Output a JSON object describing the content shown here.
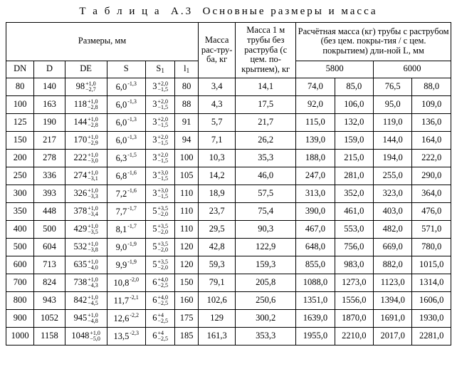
{
  "title_lead": "Т а б л и ц а",
  "title_num": "А.3",
  "title_rest": "Основные размеры и масса",
  "head": {
    "dims": "Размеры, мм",
    "massRastr": "Масса рас-тру-ба, кг",
    "mass1m": "Масса 1 м трубы без раструба (с цем. по-крытием), кг",
    "calc": "Расчётная масса (кг) трубы с раструбом (без цем. покры-тия / с цем. покрытием) дли-ной L, мм",
    "dn": "DN",
    "d": "D",
    "de": "DE",
    "s": "S",
    "s1": "S",
    "s1sub": "1",
    "i1": "l",
    "i1sub": "1",
    "l5800": "5800",
    "l6000": "6000"
  },
  "rows": [
    {
      "dn": "80",
      "d": "140",
      "de": "98",
      "det": [
        "+1,0",
        "−2,7"
      ],
      "s": "6,0",
      "st": "-1,3",
      "s1": "3",
      "s1t": [
        "+2,0",
        "−1,5"
      ],
      "i1": "80",
      "mr": "3,4",
      "m1": "14,1",
      "a": "74,0",
      "b": "85,0",
      "c": "76,5",
      "e": "88,0"
    },
    {
      "dn": "100",
      "d": "163",
      "de": "118",
      "det": [
        "+1,0",
        "−2,8"
      ],
      "s": "6,0",
      "st": "-1,3",
      "s1": "3",
      "s1t": [
        "+2,0",
        "−1,5"
      ],
      "i1": "88",
      "mr": "4,3",
      "m1": "17,5",
      "a": "92,0",
      "b": "106,0",
      "c": "95,0",
      "e": "109,0"
    },
    {
      "dn": "125",
      "d": "190",
      "de": "144",
      "det": [
        "+1,0",
        "−2,8"
      ],
      "s": "6,0",
      "st": "-1,3",
      "s1": "3",
      "s1t": [
        "+2,0",
        "−1,5"
      ],
      "i1": "91",
      "mr": "5,7",
      "m1": "21,7",
      "a": "115,0",
      "b": "132,0",
      "c": "119,0",
      "e": "136,0"
    },
    {
      "dn": "150",
      "d": "217",
      "de": "170",
      "det": [
        "+1,0",
        "−2,9"
      ],
      "s": "6,0",
      "st": "-1,3",
      "s1": "3",
      "s1t": [
        "+2,0",
        "−1,5"
      ],
      "i1": "94",
      "mr": "7,1",
      "m1": "26,2",
      "a": "139,0",
      "b": "159,0",
      "c": "144,0",
      "e": "164,0"
    },
    {
      "dn": "200",
      "d": "278",
      "de": "222",
      "det": [
        "+1,0",
        "−3,0"
      ],
      "s": "6,3",
      "st": "-1,5",
      "s1": "3",
      "s1t": [
        "+2,0",
        "−1,5"
      ],
      "i1": "100",
      "mr": "10,3",
      "m1": "35,3",
      "a": "188,0",
      "b": "215,0",
      "c": "194,0",
      "e": "222,0"
    },
    {
      "dn": "250",
      "d": "336",
      "de": "274",
      "det": [
        "+1,0",
        "−3,1"
      ],
      "s": "6,8",
      "st": "-1,6",
      "s1": "3",
      "s1t": [
        "+3,0",
        "−1,5"
      ],
      "i1": "105",
      "mr": "14,2",
      "m1": "46,0",
      "a": "247,0",
      "b": "281,0",
      "c": "255,0",
      "e": "290,0"
    },
    {
      "dn": "300",
      "d": "393",
      "de": "326",
      "det": [
        "+1,0",
        "−3,3"
      ],
      "s": "7,2",
      "st": "-1,6",
      "s1": "3",
      "s1t": [
        "+3,0",
        "−1,5"
      ],
      "i1": "110",
      "mr": "18,9",
      "m1": "57,5",
      "a": "313,0",
      "b": "352,0",
      "c": "323,0",
      "e": "364,0"
    },
    {
      "dn": "350",
      "d": "448",
      "de": "378",
      "det": [
        "+1,0",
        "−3,4"
      ],
      "s": "7,7",
      "st": "-1,7",
      "s1": "5",
      "s1t": [
        "+3,5",
        "−2,0"
      ],
      "i1": "110",
      "mr": "23,7",
      "m1": "75,4",
      "a": "390,0",
      "b": "461,0",
      "c": "403,0",
      "e": "476,0"
    },
    {
      "dn": "400",
      "d": "500",
      "de": "429",
      "det": [
        "+1,0",
        "−3,5"
      ],
      "s": "8,1",
      "st": "-1,7",
      "s1": "5",
      "s1t": [
        "+3,5",
        "−2,0"
      ],
      "i1": "110",
      "mr": "29,5",
      "m1": "90,3",
      "a": "467,0",
      "b": "553,0",
      "c": "482,0",
      "e": "571,0"
    },
    {
      "dn": "500",
      "d": "604",
      "de": "532",
      "det": [
        "+1,0",
        "−3,8"
      ],
      "s": "9,0",
      "st": "-1,9",
      "s1": "5",
      "s1t": [
        "+3,5",
        "−2,0"
      ],
      "i1": "120",
      "mr": "42,8",
      "m1": "122,9",
      "a": "648,0",
      "b": "756,0",
      "c": "669,0",
      "e": "780,0"
    },
    {
      "dn": "600",
      "d": "713",
      "de": "635",
      "det": [
        "+1,0",
        "−4,0"
      ],
      "s": "9,9",
      "st": "-1,9",
      "s1": "5",
      "s1t": [
        "+3,5",
        "−2,0"
      ],
      "i1": "120",
      "mr": "59,3",
      "m1": "159,3",
      "a": "855,0",
      "b": "983,0",
      "c": "882,0",
      "e": "1015,0"
    },
    {
      "dn": "700",
      "d": "824",
      "de": "738",
      "det": [
        "+1,0",
        "−4,3"
      ],
      "s": "10,8",
      "st": "-2,0",
      "s1": "6",
      "s1t": [
        "+4,0",
        "−2,5"
      ],
      "i1": "150",
      "mr": "79,1",
      "m1": "205,8",
      "a": "1088,0",
      "b": "1273,0",
      "c": "1123,0",
      "e": "1314,0"
    },
    {
      "dn": "800",
      "d": "943",
      "de": "842",
      "det": [
        "+1,0",
        "−4,5"
      ],
      "s": "11,7",
      "st": "-2,1",
      "s1": "6",
      "s1t": [
        "+4,0",
        "−2,5"
      ],
      "i1": "160",
      "mr": "102,6",
      "m1": "250,6",
      "a": "1351,0",
      "b": "1556,0",
      "c": "1394,0",
      "e": "1606,0"
    },
    {
      "dn": "900",
      "d": "1052",
      "de": "945",
      "det": [
        "+1,0",
        "−4,8"
      ],
      "s": "12,6",
      "st": "-2,2",
      "s1": "6",
      "s1t": [
        "+4",
        "−2,5"
      ],
      "i1": "175",
      "mr": "129",
      "m1": "300,2",
      "a": "1639,0",
      "b": "1870,0",
      "c": "1691,0",
      "e": "1930,0"
    },
    {
      "dn": "1000",
      "d": "1158",
      "de": "1048",
      "det": [
        "+1,0",
        "−5,0"
      ],
      "s": "13,5",
      "st": "-2,3",
      "s1": "6",
      "s1t": [
        "+4",
        "−2,5"
      ],
      "i1": "185",
      "mr": "161,3",
      "m1": "353,3",
      "a": "1955,0",
      "b": "2210,0",
      "c": "2017,0",
      "e": "2281,0"
    }
  ]
}
